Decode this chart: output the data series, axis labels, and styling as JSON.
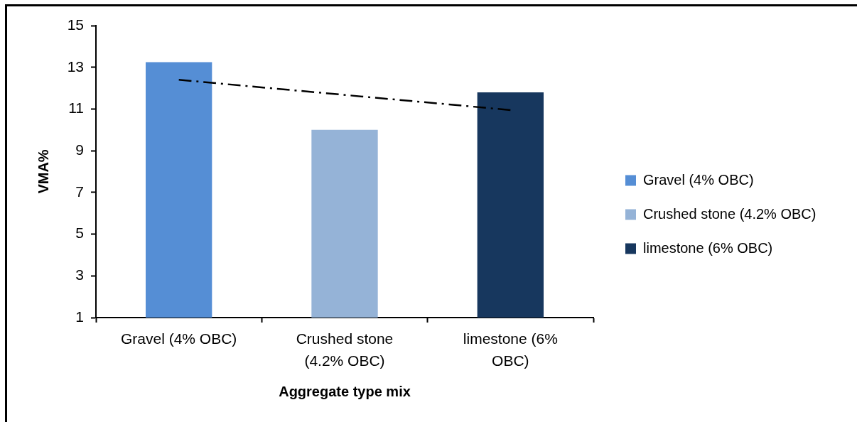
{
  "chart_data": {
    "type": "bar",
    "xlabel": "Aggregate type mix",
    "ylabel": "VMA%",
    "categories": [
      "Gravel (4% OBC)",
      "Crushed stone (4.2% OBC)",
      "limestone (6% OBC)"
    ],
    "series": [
      {
        "name": "Gravel (4% OBC)",
        "color": "#558ed5",
        "values": [
          13.25,
          null,
          null
        ]
      },
      {
        "name": "Crushed stone (4.2% OBC)",
        "color": "#95b3d7",
        "values": [
          null,
          10.0,
          null
        ]
      },
      {
        "name": "limestone (6% OBC)",
        "color": "#17375e",
        "values": [
          null,
          null,
          11.8
        ]
      },
      {
        "type": "line",
        "x": [
          "Gravel (4% OBC)",
          "limestone (6% OBC)"
        ],
        "values": [
          12.4,
          10.95
        ],
        "color": "#000000",
        "line_style": "dashed",
        "marker": "none"
      }
    ],
    "ylim": [
      1,
      15
    ],
    "yticks": [
      1,
      3,
      5,
      7,
      9,
      11,
      13,
      15
    ],
    "grid": false,
    "legend": "right"
  }
}
